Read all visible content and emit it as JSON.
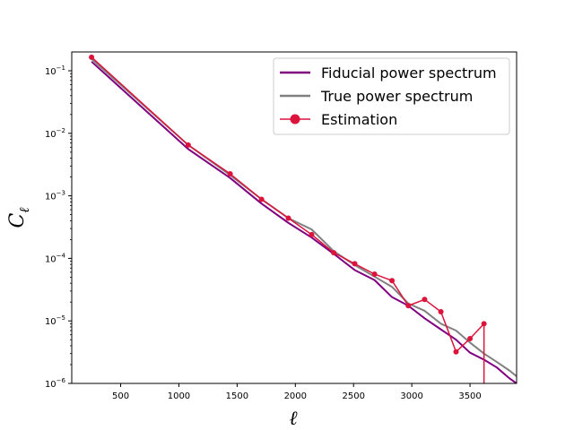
{
  "chart_data": {
    "type": "line",
    "title": "",
    "xlabel": "ℓ",
    "ylabel": "C",
    "ylabel_sub": "ℓ",
    "xscale": "linear",
    "yscale": "log",
    "xlim": [
      80,
      3900
    ],
    "ylim": [
      1e-06,
      0.2
    ],
    "xticks": [
      500,
      1000,
      1500,
      2000,
      2500,
      3000,
      3500
    ],
    "xtick_labels": [
      "500",
      "1000",
      "1500",
      "2000",
      "2500",
      "3000",
      "3500"
    ],
    "yticks": [
      {
        "value": 1e-06,
        "base": "10",
        "exp": "−6"
      },
      {
        "value": 1e-05,
        "base": "10",
        "exp": "−5"
      },
      {
        "value": 0.0001,
        "base": "10",
        "exp": "−4"
      },
      {
        "value": 0.001,
        "base": "10",
        "exp": "−3"
      },
      {
        "value": 0.01,
        "base": "10",
        "exp": "−2"
      },
      {
        "value": 0.1,
        "base": "10",
        "exp": "−1"
      }
    ],
    "grid": false,
    "legend_position": "top-right",
    "series": [
      {
        "name": "Fiducial power spectrum",
        "color": "#800080",
        "marker": false,
        "x": [
          250,
          1080,
          1440,
          1710,
          1940,
          2140,
          2330,
          2510,
          2680,
          2830,
          2970,
          3110,
          3250,
          3380,
          3500,
          3620,
          3730,
          3840,
          3900
        ],
        "y": [
          0.14,
          0.0056,
          0.00193,
          0.00075,
          0.00037,
          0.000215,
          0.000118,
          6.5e-05,
          4.5e-05,
          2.4e-05,
          1.75e-05,
          1.1e-05,
          7.3e-06,
          5e-06,
          3.1e-06,
          2.4e-06,
          1.8e-06,
          1.2e-06,
          1e-06
        ]
      },
      {
        "name": "True power spectrum",
        "color": "#808080",
        "marker": false,
        "x": [
          250,
          1080,
          1440,
          1710,
          1940,
          2140,
          2330,
          2510,
          2680,
          2830,
          2970,
          3110,
          3250,
          3380,
          3500,
          3620,
          3730,
          3840,
          3900
        ],
        "y": [
          0.155,
          0.0065,
          0.00215,
          0.00088,
          0.00044,
          0.00029,
          0.00013,
          7.8e-05,
          5.1e-05,
          3.5e-05,
          1.9e-05,
          1.45e-05,
          9e-06,
          7e-06,
          4.5e-06,
          3e-06,
          2.2e-06,
          1.6e-06,
          1.3e-06
        ]
      },
      {
        "name": "Estimation",
        "color": "#dc143c",
        "marker": true,
        "x": [
          250,
          1080,
          1440,
          1710,
          1940,
          2140,
          2330,
          2510,
          2680,
          2830,
          2970,
          3110,
          3250,
          3380,
          3500,
          3620
        ],
        "y": [
          0.165,
          0.0065,
          0.00225,
          0.00088,
          0.00044,
          0.00024,
          0.000123,
          8.2e-05,
          5.6e-05,
          4.4e-05,
          1.75e-05,
          2.2e-05,
          1.4e-05,
          3.2e-06,
          5.2e-06,
          9e-06
        ],
        "drop_to_bottom_at_end": true
      }
    ]
  }
}
